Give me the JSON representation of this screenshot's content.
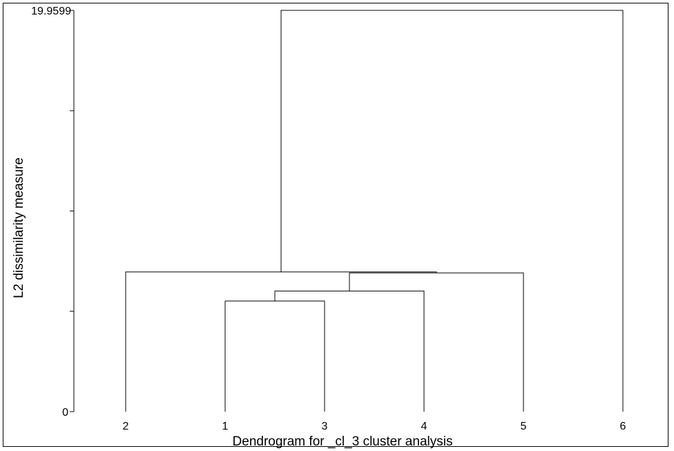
{
  "chart_data": {
    "type": "dendrogram",
    "title": "",
    "xlabel": "Dendrogram for _cl_3 cluster analysis",
    "ylabel": "L2 dissimilarity measure",
    "ylim": [
      0,
      19.9599
    ],
    "y_tick_labels": [
      "0",
      "19.9599"
    ],
    "y_tick_count": 5,
    "leaves": [
      "2",
      "1",
      "3",
      "4",
      "5",
      "6"
    ],
    "merges": [
      {
        "left": "1",
        "right": "3",
        "height": 5.5
      },
      {
        "left": "1,3",
        "right": "4",
        "height": 6.0
      },
      {
        "left": "1,3,4",
        "right": "5",
        "height": 6.9
      },
      {
        "left": "2",
        "right": "1,3,4,5",
        "height": 6.95
      },
      {
        "left": "2,1,3,4,5",
        "right": "6",
        "height": 19.9599
      }
    ],
    "grid": false,
    "legend": "none"
  }
}
